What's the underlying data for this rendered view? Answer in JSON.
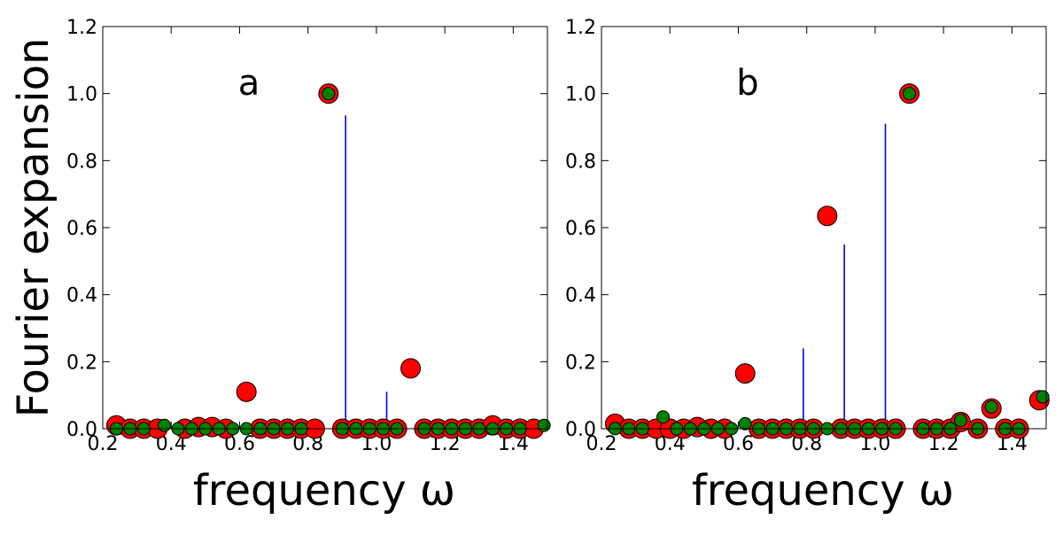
{
  "chart_data": [
    {
      "type": "scatter",
      "panel_label": "a",
      "xlabel": "frequency ω",
      "ylabel": "Fourier expansion",
      "xlim": [
        0.2,
        1.5
      ],
      "ylim": [
        0,
        1.2
      ],
      "x_ticks": [
        "0.2",
        "0.4",
        "0.6",
        "0.8",
        "1.0",
        "1.2",
        "1.4"
      ],
      "y_ticks": [
        "0.0",
        "0.2",
        "0.4",
        "0.6",
        "0.8",
        "1.0",
        "1.2"
      ],
      "grid": false,
      "series": [
        {
          "kind": "stem",
          "color": "#0000ff",
          "points": [
            {
              "x": 0.79,
              "y": 0.02
            },
            {
              "x": 0.91,
              "y": 0.935
            },
            {
              "x": 1.03,
              "y": 0.11
            }
          ]
        },
        {
          "kind": "markers",
          "color": "#ff0000",
          "size": "large",
          "points": [
            {
              "x": 0.24,
              "y": 0.01
            },
            {
              "x": 0.28,
              "y": 0.0
            },
            {
              "x": 0.32,
              "y": 0.0
            },
            {
              "x": 0.36,
              "y": 0.0
            },
            {
              "x": 0.44,
              "y": 0.0
            },
            {
              "x": 0.48,
              "y": 0.005
            },
            {
              "x": 0.52,
              "y": 0.005
            },
            {
              "x": 0.56,
              "y": 0.0
            },
            {
              "x": 0.62,
              "y": 0.11
            },
            {
              "x": 0.66,
              "y": 0.0
            },
            {
              "x": 0.7,
              "y": 0.0
            },
            {
              "x": 0.74,
              "y": 0.0
            },
            {
              "x": 0.78,
              "y": 0.0
            },
            {
              "x": 0.82,
              "y": 0.0
            },
            {
              "x": 0.86,
              "y": 1.0
            },
            {
              "x": 0.9,
              "y": 0.0
            },
            {
              "x": 0.94,
              "y": 0.0
            },
            {
              "x": 0.98,
              "y": 0.0
            },
            {
              "x": 1.02,
              "y": 0.0
            },
            {
              "x": 1.06,
              "y": 0.0
            },
            {
              "x": 1.1,
              "y": 0.18
            },
            {
              "x": 1.14,
              "y": 0.0
            },
            {
              "x": 1.18,
              "y": 0.0
            },
            {
              "x": 1.22,
              "y": 0.0
            },
            {
              "x": 1.26,
              "y": 0.0
            },
            {
              "x": 1.3,
              "y": 0.0
            },
            {
              "x": 1.34,
              "y": 0.01
            },
            {
              "x": 1.38,
              "y": 0.0
            },
            {
              "x": 1.42,
              "y": 0.0
            },
            {
              "x": 1.46,
              "y": 0.0
            }
          ]
        },
        {
          "kind": "markers",
          "color": "#008000",
          "size": "small",
          "points": [
            {
              "x": 0.24,
              "y": 0.0
            },
            {
              "x": 0.28,
              "y": 0.0
            },
            {
              "x": 0.32,
              "y": 0.0
            },
            {
              "x": 0.38,
              "y": 0.01
            },
            {
              "x": 0.42,
              "y": 0.0
            },
            {
              "x": 0.46,
              "y": 0.0
            },
            {
              "x": 0.5,
              "y": 0.0
            },
            {
              "x": 0.54,
              "y": 0.0
            },
            {
              "x": 0.58,
              "y": 0.0
            },
            {
              "x": 0.62,
              "y": 0.0
            },
            {
              "x": 0.66,
              "y": 0.0
            },
            {
              "x": 0.7,
              "y": 0.0
            },
            {
              "x": 0.74,
              "y": 0.0
            },
            {
              "x": 0.78,
              "y": 0.0
            },
            {
              "x": 0.86,
              "y": 1.0
            },
            {
              "x": 0.9,
              "y": 0.0
            },
            {
              "x": 0.94,
              "y": 0.0
            },
            {
              "x": 0.98,
              "y": 0.0
            },
            {
              "x": 1.02,
              "y": 0.0
            },
            {
              "x": 1.06,
              "y": 0.0
            },
            {
              "x": 1.14,
              "y": 0.0
            },
            {
              "x": 1.18,
              "y": 0.0
            },
            {
              "x": 1.22,
              "y": 0.0
            },
            {
              "x": 1.26,
              "y": 0.0
            },
            {
              "x": 1.3,
              "y": 0.0
            },
            {
              "x": 1.34,
              "y": 0.0
            },
            {
              "x": 1.38,
              "y": 0.0
            },
            {
              "x": 1.42,
              "y": 0.0
            },
            {
              "x": 1.49,
              "y": 0.01
            }
          ]
        }
      ]
    },
    {
      "type": "scatter",
      "panel_label": "b",
      "xlabel": "frequency ω",
      "ylabel": "",
      "xlim": [
        0.2,
        1.5
      ],
      "ylim": [
        0,
        1.2
      ],
      "x_ticks": [
        "0.2",
        "0.4",
        "0.6",
        "0.8",
        "1.0",
        "1.2",
        "1.4"
      ],
      "y_ticks": [
        "0.0",
        "0.2",
        "0.4",
        "0.6",
        "0.8",
        "1.0",
        "1.2"
      ],
      "grid": false,
      "series": [
        {
          "kind": "stem",
          "color": "#0000ff",
          "points": [
            {
              "x": 0.79,
              "y": 0.24
            },
            {
              "x": 0.91,
              "y": 0.55
            },
            {
              "x": 1.03,
              "y": 0.91
            }
          ]
        },
        {
          "kind": "markers",
          "color": "#ff0000",
          "size": "large",
          "points": [
            {
              "x": 0.24,
              "y": 0.015
            },
            {
              "x": 0.28,
              "y": 0.0
            },
            {
              "x": 0.32,
              "y": 0.0
            },
            {
              "x": 0.36,
              "y": 0.0
            },
            {
              "x": 0.4,
              "y": 0.0
            },
            {
              "x": 0.44,
              "y": 0.0
            },
            {
              "x": 0.48,
              "y": 0.005
            },
            {
              "x": 0.52,
              "y": 0.0
            },
            {
              "x": 0.56,
              "y": 0.0
            },
            {
              "x": 0.62,
              "y": 0.165
            },
            {
              "x": 0.66,
              "y": 0.0
            },
            {
              "x": 0.7,
              "y": 0.0
            },
            {
              "x": 0.74,
              "y": 0.0
            },
            {
              "x": 0.78,
              "y": 0.0
            },
            {
              "x": 0.82,
              "y": 0.0
            },
            {
              "x": 0.86,
              "y": 0.635
            },
            {
              "x": 0.9,
              "y": 0.0
            },
            {
              "x": 0.94,
              "y": 0.0
            },
            {
              "x": 0.98,
              "y": 0.0
            },
            {
              "x": 1.02,
              "y": 0.0
            },
            {
              "x": 1.06,
              "y": 0.0
            },
            {
              "x": 1.1,
              "y": 1.0
            },
            {
              "x": 1.14,
              "y": 0.0
            },
            {
              "x": 1.18,
              "y": 0.0
            },
            {
              "x": 1.22,
              "y": 0.0
            },
            {
              "x": 1.25,
              "y": 0.02
            },
            {
              "x": 1.3,
              "y": 0.0
            },
            {
              "x": 1.34,
              "y": 0.06
            },
            {
              "x": 1.38,
              "y": 0.0
            },
            {
              "x": 1.42,
              "y": 0.0
            },
            {
              "x": 1.48,
              "y": 0.085
            }
          ]
        },
        {
          "kind": "markers",
          "color": "#008000",
          "size": "small",
          "points": [
            {
              "x": 0.24,
              "y": 0.0
            },
            {
              "x": 0.28,
              "y": 0.0
            },
            {
              "x": 0.32,
              "y": 0.0
            },
            {
              "x": 0.38,
              "y": 0.035
            },
            {
              "x": 0.42,
              "y": 0.0
            },
            {
              "x": 0.46,
              "y": 0.0
            },
            {
              "x": 0.5,
              "y": 0.0
            },
            {
              "x": 0.54,
              "y": 0.0
            },
            {
              "x": 0.58,
              "y": 0.0
            },
            {
              "x": 0.62,
              "y": 0.015
            },
            {
              "x": 0.66,
              "y": 0.0
            },
            {
              "x": 0.7,
              "y": 0.0
            },
            {
              "x": 0.74,
              "y": 0.0
            },
            {
              "x": 0.78,
              "y": 0.0
            },
            {
              "x": 0.82,
              "y": 0.0
            },
            {
              "x": 0.86,
              "y": 0.0
            },
            {
              "x": 0.9,
              "y": 0.0
            },
            {
              "x": 0.94,
              "y": 0.0
            },
            {
              "x": 0.98,
              "y": 0.0
            },
            {
              "x": 1.02,
              "y": 0.0
            },
            {
              "x": 1.06,
              "y": 0.0
            },
            {
              "x": 1.1,
              "y": 1.0
            },
            {
              "x": 1.14,
              "y": 0.0
            },
            {
              "x": 1.18,
              "y": 0.0
            },
            {
              "x": 1.22,
              "y": 0.0
            },
            {
              "x": 1.25,
              "y": 0.025
            },
            {
              "x": 1.3,
              "y": 0.0
            },
            {
              "x": 1.34,
              "y": 0.065
            },
            {
              "x": 1.38,
              "y": 0.0
            },
            {
              "x": 1.42,
              "y": 0.0
            },
            {
              "x": 1.49,
              "y": 0.095
            }
          ]
        }
      ]
    }
  ]
}
